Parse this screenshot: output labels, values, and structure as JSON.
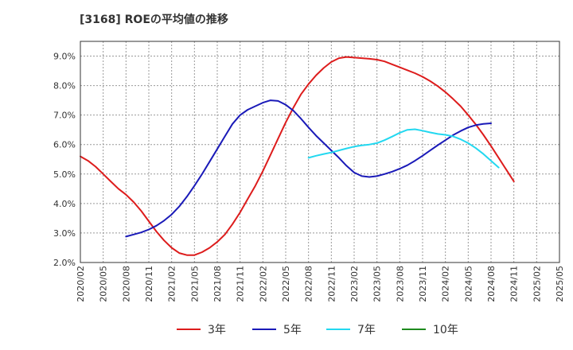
{
  "chart_data": {
    "type": "line",
    "title": "[3168]  ROEの平均値の推移",
    "xlabel": "",
    "ylabel": "",
    "ylim": [
      2.0,
      9.5
    ],
    "yticks": [
      2.0,
      3.0,
      4.0,
      5.0,
      6.0,
      7.0,
      8.0,
      9.0
    ],
    "ytick_labels": [
      "2.0%",
      "3.0%",
      "4.0%",
      "5.0%",
      "6.0%",
      "7.0%",
      "8.0%",
      "9.0%"
    ],
    "x_start": "2020/02",
    "x_end": "2025/05",
    "xtick_labels": [
      "2020/02",
      "2020/05",
      "2020/08",
      "2020/11",
      "2021/02",
      "2021/05",
      "2021/08",
      "2021/11",
      "2022/02",
      "2022/05",
      "2022/08",
      "2022/11",
      "2023/02",
      "2023/05",
      "2023/08",
      "2023/11",
      "2024/02",
      "2024/05",
      "2024/08",
      "2024/11",
      "2025/02",
      "2025/05"
    ],
    "grid": true,
    "legend_position": "bottom",
    "series": [
      {
        "name": "3年",
        "color": "#dd1c1c",
        "start": "2020/02",
        "values": [
          5.6,
          5.45,
          5.25,
          5.0,
          4.75,
          4.5,
          4.3,
          4.05,
          3.75,
          3.4,
          3.05,
          2.75,
          2.5,
          2.32,
          2.25,
          2.25,
          2.35,
          2.5,
          2.7,
          2.95,
          3.3,
          3.7,
          4.15,
          4.6,
          5.1,
          5.65,
          6.2,
          6.75,
          7.25,
          7.7,
          8.05,
          8.35,
          8.6,
          8.8,
          8.93,
          8.97,
          8.95,
          8.93,
          8.91,
          8.88,
          8.82,
          8.72,
          8.62,
          8.52,
          8.42,
          8.3,
          8.15,
          7.98,
          7.78,
          7.55,
          7.3,
          7.0,
          6.68,
          6.33,
          5.95,
          5.55,
          5.15,
          4.75
        ]
      },
      {
        "name": "5年",
        "color": "#1a1ab8",
        "start": "2020/08",
        "values": [
          2.88,
          2.95,
          3.02,
          3.12,
          3.25,
          3.42,
          3.63,
          3.9,
          4.23,
          4.6,
          5.0,
          5.42,
          5.85,
          6.28,
          6.7,
          7.0,
          7.18,
          7.3,
          7.42,
          7.5,
          7.48,
          7.35,
          7.15,
          6.88,
          6.58,
          6.3,
          6.05,
          5.8,
          5.55,
          5.28,
          5.05,
          4.93,
          4.9,
          4.93,
          5.0,
          5.08,
          5.18,
          5.3,
          5.45,
          5.62,
          5.8,
          5.98,
          6.15,
          6.32,
          6.46,
          6.58,
          6.66,
          6.7,
          6.72
        ]
      },
      {
        "name": "7年",
        "color": "#22d8f0",
        "start": "2022/08",
        "values": [
          5.55,
          5.62,
          5.68,
          5.73,
          5.8,
          5.87,
          5.93,
          5.97,
          6.0,
          6.05,
          6.15,
          6.27,
          6.4,
          6.5,
          6.52,
          6.47,
          6.41,
          6.36,
          6.33,
          6.28,
          6.18,
          6.05,
          5.88,
          5.68,
          5.45,
          5.22
        ]
      },
      {
        "name": "10年",
        "color": "#1e8a1e",
        "start": "2025/02",
        "values": []
      }
    ]
  }
}
